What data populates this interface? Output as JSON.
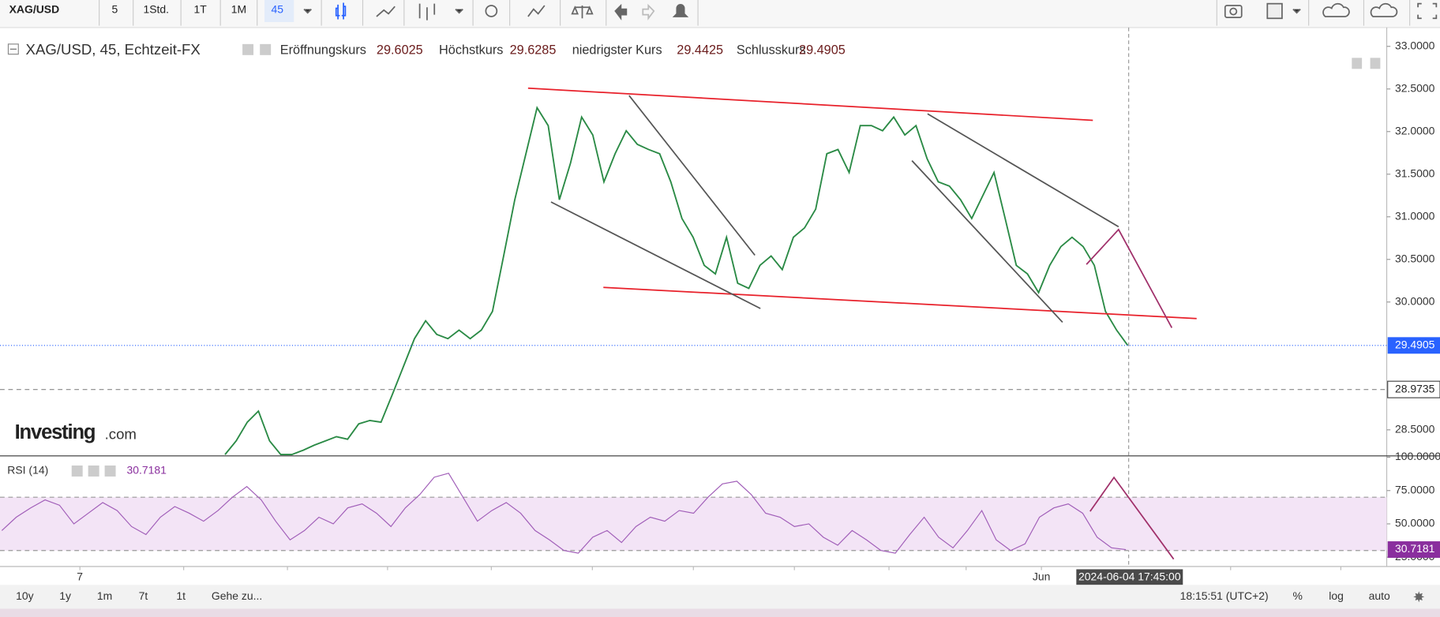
{
  "toolbar": {
    "symbol": "XAG/USD",
    "intervals": [
      "5",
      "1Std.",
      "1T",
      "1M",
      "45"
    ]
  },
  "legend": {
    "instrument": "XAG/USD, 45, Echtzeit-FX",
    "fields": [
      {
        "label": "Eröffnungskurs",
        "value": 29.6025
      },
      {
        "label": "Höchstkurs",
        "value": 29.6285
      },
      {
        "label": "niedrigster Kurs",
        "value": 29.4425
      },
      {
        "label": "Schlusskurs",
        "value": 29.4905
      }
    ]
  },
  "watermark": [
    "Investing",
    ".com"
  ],
  "chart_data": [
    {
      "type": "line",
      "color": "#2a8a45",
      "ylim": [
        28.2,
        33.21
      ],
      "yticks": [
        {
          "value": 33,
          "label": "33.0000"
        },
        {
          "value": 32.5,
          "label": "32.5000"
        },
        {
          "value": 32,
          "label": "32.0000"
        },
        {
          "value": 31.5,
          "label": "31.5000"
        },
        {
          "value": 31,
          "label": "31.0000"
        },
        {
          "value": 30.5,
          "label": "30.5000"
        },
        {
          "value": 30,
          "label": "30.0000"
        },
        {
          "value": 28.5,
          "label": "28.5000"
        }
      ],
      "price_lines": [
        29.4905,
        28.9735
      ],
      "values": [
        28.21,
        28.37,
        28.59,
        28.72,
        28.37,
        28.21,
        28.21,
        28.26,
        28.32,
        28.37,
        28.42,
        28.39,
        28.57,
        28.61,
        28.59,
        28.91,
        29.24,
        29.57,
        29.78,
        29.62,
        29.57,
        29.67,
        29.57,
        29.67,
        29.89,
        30.54,
        31.2,
        31.74,
        32.28,
        32.07,
        31.2,
        31.63,
        32.17,
        31.96,
        31.41,
        31.74,
        32.01,
        31.85,
        31.79,
        31.74,
        31.41,
        30.98,
        30.76,
        30.43,
        30.33,
        30.76,
        30.22,
        30.16,
        30.43,
        30.54,
        30.38,
        30.76,
        30.87,
        31.09,
        31.74,
        31.79,
        31.52,
        32.07,
        32.07,
        32.01,
        32.17,
        31.96,
        32.07,
        31.68,
        31.41,
        31.36,
        31.2,
        30.98,
        31.25,
        31.52,
        30.98,
        30.43,
        30.33,
        30.11,
        30.43,
        30.65,
        30.76,
        30.65,
        30.43,
        29.89,
        29.67,
        29.4905
      ]
    },
    {
      "type": "line",
      "title": "RSI (14)",
      "color": "#a05db8",
      "ylim": [
        18,
        100.7
      ],
      "band": [
        30,
        70
      ],
      "yticks": [
        {
          "value": 100,
          "label": "100.0000"
        },
        {
          "value": 75,
          "label": "75.0000"
        },
        {
          "value": 50,
          "label": "50.0000"
        },
        {
          "value": 25,
          "label": "25.0000"
        }
      ],
      "values": [
        45,
        55,
        62,
        68,
        64,
        50,
        58,
        66,
        60,
        48,
        42,
        55,
        63,
        58,
        52,
        60,
        70,
        78,
        68,
        52,
        38,
        45,
        55,
        50,
        62,
        65,
        58,
        48,
        62,
        72,
        85,
        88,
        70,
        52,
        60,
        66,
        58,
        45,
        38,
        30,
        28,
        40,
        45,
        36,
        48,
        55,
        52,
        60,
        58,
        70,
        80,
        82,
        72,
        58,
        55,
        48,
        50,
        40,
        34,
        45,
        38,
        30,
        28,
        42,
        55,
        40,
        32,
        45,
        60,
        38,
        30,
        35,
        55,
        62,
        65,
        58,
        40,
        32,
        30.7181
      ]
    }
  ],
  "time_axis": {
    "labels": [
      "7",
      "Jun"
    ],
    "cursor": "2024-06-04 17:45:00"
  },
  "bottom_bar": {
    "ranges": [
      "10y",
      "1y",
      "1m",
      "7t",
      "1t",
      "Gehe zu..."
    ],
    "clock": "18:15:51 (UTC+2)",
    "options": [
      "%",
      "log",
      "auto"
    ]
  }
}
